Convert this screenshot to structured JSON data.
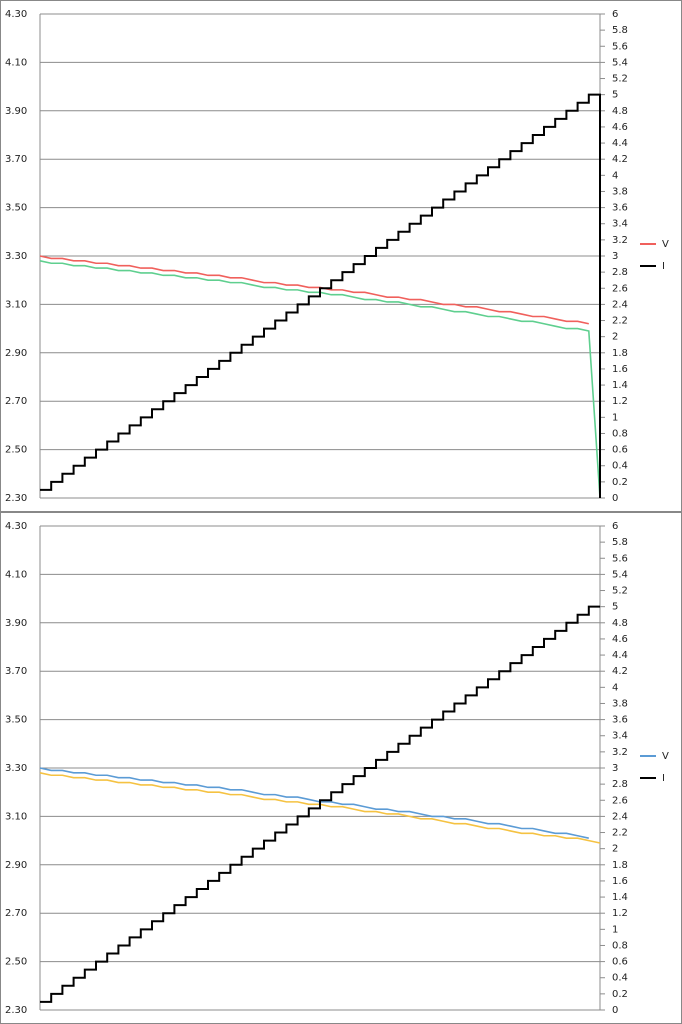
{
  "chart_data": [
    {
      "type": "line",
      "series": [
        {
          "name": "V",
          "color": "#f0605c",
          "values": [
            3.3,
            3.29,
            3.29,
            3.28,
            3.28,
            3.27,
            3.27,
            3.26,
            3.26,
            3.25,
            3.25,
            3.24,
            3.24,
            3.23,
            3.23,
            3.22,
            3.22,
            3.21,
            3.21,
            3.2,
            3.19,
            3.19,
            3.18,
            3.18,
            3.17,
            3.17,
            3.16,
            3.16,
            3.15,
            3.15,
            3.14,
            3.13,
            3.13,
            3.12,
            3.12,
            3.11,
            3.1,
            3.1,
            3.09,
            3.09,
            3.08,
            3.07,
            3.07,
            3.06,
            3.05,
            3.05,
            3.04,
            3.03,
            3.03,
            3.02,
            null
          ]
        },
        {
          "color": "#5fcf8f",
          "values": [
            3.28,
            3.27,
            3.27,
            3.26,
            3.26,
            3.25,
            3.25,
            3.24,
            3.24,
            3.23,
            3.23,
            3.22,
            3.22,
            3.21,
            3.21,
            3.2,
            3.2,
            3.19,
            3.19,
            3.18,
            3.17,
            3.17,
            3.16,
            3.16,
            3.15,
            3.15,
            3.14,
            3.14,
            3.13,
            3.12,
            3.12,
            3.11,
            3.11,
            3.1,
            3.09,
            3.09,
            3.08,
            3.07,
            3.07,
            3.06,
            3.05,
            3.05,
            3.04,
            3.03,
            3.03,
            3.02,
            3.01,
            3.0,
            3.0,
            2.99,
            2.3
          ]
        },
        {
          "name": "I",
          "color": "#000000",
          "axis": "y2",
          "step": true,
          "values": [
            0.1,
            0.2,
            0.3,
            0.4,
            0.5,
            0.6,
            0.7,
            0.8,
            0.9,
            1,
            1.1,
            1.2,
            1.3,
            1.4,
            1.5,
            1.6,
            1.7,
            1.8,
            1.9,
            2,
            2.1,
            2.2,
            2.3,
            2.4,
            2.5,
            2.6,
            2.7,
            2.8,
            2.9,
            3,
            3.1,
            3.2,
            3.3,
            3.4,
            3.5,
            3.6,
            3.7,
            3.8,
            3.9,
            4,
            4.1,
            4.2,
            4.3,
            4.4,
            4.5,
            4.6,
            4.7,
            4.8,
            4.9,
            5,
            0
          ]
        }
      ],
      "ylim": [
        2.3,
        4.3
      ],
      "yticks": [
        {
          "value": 2.3,
          "label": "2.30"
        },
        {
          "value": 2.5,
          "label": "2.50"
        },
        {
          "value": 2.7,
          "label": "2.70"
        },
        {
          "value": 2.9,
          "label": "2.90"
        },
        {
          "value": 3.1,
          "label": "3.10"
        },
        {
          "value": 3.3,
          "label": "3.30"
        },
        {
          "value": 3.5,
          "label": "3.50"
        },
        {
          "value": 3.7,
          "label": "3.70"
        },
        {
          "value": 3.9,
          "label": "3.90"
        },
        {
          "value": 4.1,
          "label": "4.10"
        },
        {
          "value": 4.3,
          "label": "4.30"
        }
      ],
      "y2lim": [
        0,
        6
      ],
      "y2ticks": [
        0,
        0.2,
        0.4,
        0.6,
        0.8,
        1,
        1.2,
        1.4,
        1.6,
        1.8,
        2,
        2.2,
        2.4,
        2.6,
        2.8,
        3,
        3.2,
        3.4,
        3.6,
        3.8,
        4,
        4.2,
        4.4,
        4.6,
        4.8,
        5,
        5.2,
        5.4,
        5.6,
        5.8,
        6
      ],
      "grid": true,
      "legend": "right"
    },
    {
      "type": "line",
      "series": [
        {
          "name": "V",
          "color": "#5b9bd5",
          "values": [
            3.3,
            3.29,
            3.29,
            3.28,
            3.28,
            3.27,
            3.27,
            3.26,
            3.26,
            3.25,
            3.25,
            3.24,
            3.24,
            3.23,
            3.23,
            3.22,
            3.22,
            3.21,
            3.21,
            3.2,
            3.19,
            3.19,
            3.18,
            3.18,
            3.17,
            3.16,
            3.16,
            3.15,
            3.15,
            3.14,
            3.13,
            3.13,
            3.12,
            3.12,
            3.11,
            3.1,
            3.1,
            3.09,
            3.09,
            3.08,
            3.07,
            3.07,
            3.06,
            3.05,
            3.05,
            3.04,
            3.03,
            3.03,
            3.02,
            3.01,
            null
          ]
        },
        {
          "color": "#f5c242",
          "values": [
            3.28,
            3.27,
            3.27,
            3.26,
            3.26,
            3.25,
            3.25,
            3.24,
            3.24,
            3.23,
            3.23,
            3.22,
            3.22,
            3.21,
            3.21,
            3.2,
            3.2,
            3.19,
            3.19,
            3.18,
            3.17,
            3.17,
            3.16,
            3.16,
            3.15,
            3.15,
            3.14,
            3.14,
            3.13,
            3.12,
            3.12,
            3.11,
            3.11,
            3.1,
            3.09,
            3.09,
            3.08,
            3.07,
            3.07,
            3.06,
            3.05,
            3.05,
            3.04,
            3.03,
            3.03,
            3.02,
            3.02,
            3.01,
            3.01,
            3.0,
            2.99
          ]
        },
        {
          "name": "I",
          "color": "#000000",
          "axis": "y2",
          "step": true,
          "values": [
            0.1,
            0.2,
            0.3,
            0.4,
            0.5,
            0.6,
            0.7,
            0.8,
            0.9,
            1,
            1.1,
            1.2,
            1.3,
            1.4,
            1.5,
            1.6,
            1.7,
            1.8,
            1.9,
            2,
            2.1,
            2.2,
            2.3,
            2.4,
            2.5,
            2.6,
            2.7,
            2.8,
            2.9,
            3,
            3.1,
            3.2,
            3.3,
            3.4,
            3.5,
            3.6,
            3.7,
            3.8,
            3.9,
            4,
            4.1,
            4.2,
            4.3,
            4.4,
            4.5,
            4.6,
            4.7,
            4.8,
            4.9,
            5,
            5
          ]
        }
      ],
      "ylim": [
        2.3,
        4.3
      ],
      "yticks": [
        {
          "value": 2.3,
          "label": "2.30"
        },
        {
          "value": 2.5,
          "label": "2.50"
        },
        {
          "value": 2.7,
          "label": "2.70"
        },
        {
          "value": 2.9,
          "label": "2.90"
        },
        {
          "value": 3.1,
          "label": "3.10"
        },
        {
          "value": 3.3,
          "label": "3.30"
        },
        {
          "value": 3.5,
          "label": "3.50"
        },
        {
          "value": 3.7,
          "label": "3.70"
        },
        {
          "value": 3.9,
          "label": "3.90"
        },
        {
          "value": 4.1,
          "label": "4.10"
        },
        {
          "value": 4.3,
          "label": "4.30"
        }
      ],
      "y2lim": [
        0,
        6
      ],
      "y2ticks": [
        0,
        0.2,
        0.4,
        0.6,
        0.8,
        1,
        1.2,
        1.4,
        1.6,
        1.8,
        2,
        2.2,
        2.4,
        2.6,
        2.8,
        3,
        3.2,
        3.4,
        3.6,
        3.8,
        4,
        4.2,
        4.4,
        4.6,
        4.8,
        5,
        5.2,
        5.4,
        5.6,
        5.8,
        6
      ],
      "grid": true,
      "legend": "right"
    }
  ]
}
